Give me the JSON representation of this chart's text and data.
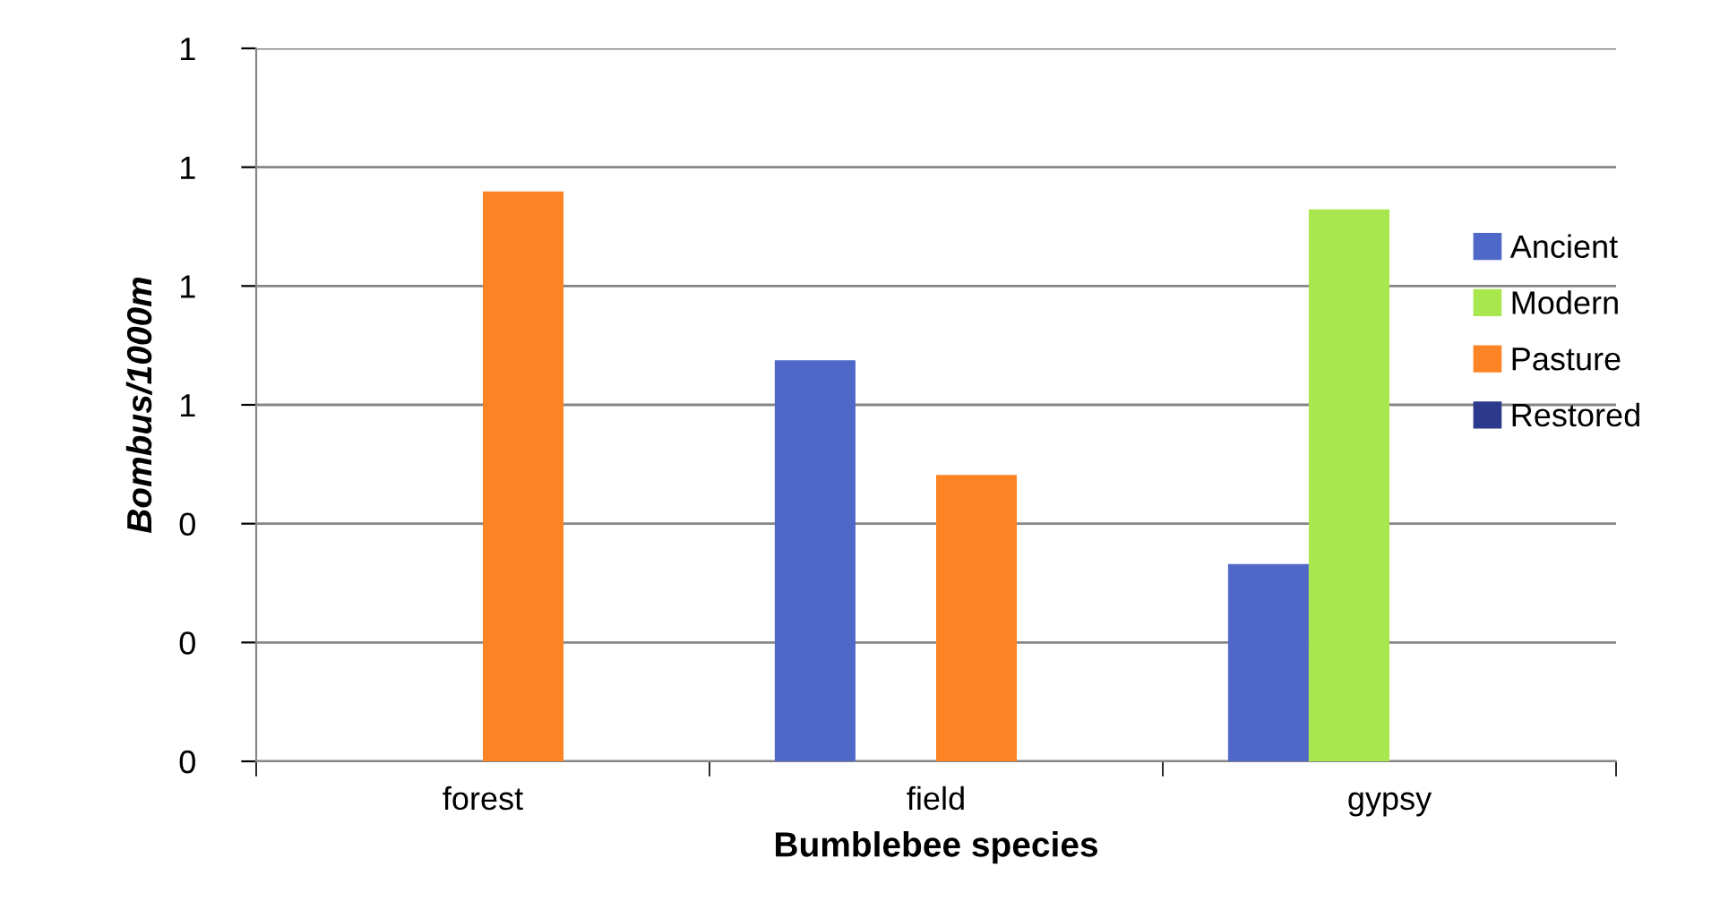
{
  "chart_data": {
    "type": "bar",
    "xlabel": "Bumblebee species",
    "ylabel": "Bombus/1000m",
    "categories": [
      "forest",
      "field",
      "gypsy"
    ],
    "series": [
      {
        "name": "Ancient",
        "color": "#4f68c8",
        "values": [
          0,
          0.675,
          0.332
        ]
      },
      {
        "name": "Modern",
        "color": "#a8e84e",
        "values": [
          0,
          0,
          0.929
        ]
      },
      {
        "name": "Pasture",
        "color": "#fd8424",
        "values": [
          0.959,
          0.482,
          0
        ]
      },
      {
        "name": "Restored",
        "color": "#2b3a8c",
        "values": [
          0,
          0,
          0
        ]
      }
    ],
    "ylim": [
      0,
      1.2
    ],
    "yticks": [
      {
        "value": 0,
        "label": "0"
      },
      {
        "value": 0.2,
        "label": "0"
      },
      {
        "value": 0.4,
        "label": "0"
      },
      {
        "value": 0.6,
        "label": "1"
      },
      {
        "value": 0.8,
        "label": "1"
      },
      {
        "value": 1.0,
        "label": "1"
      },
      {
        "value": 1.2,
        "label": "1"
      }
    ],
    "grid": "y",
    "legend": "right"
  }
}
